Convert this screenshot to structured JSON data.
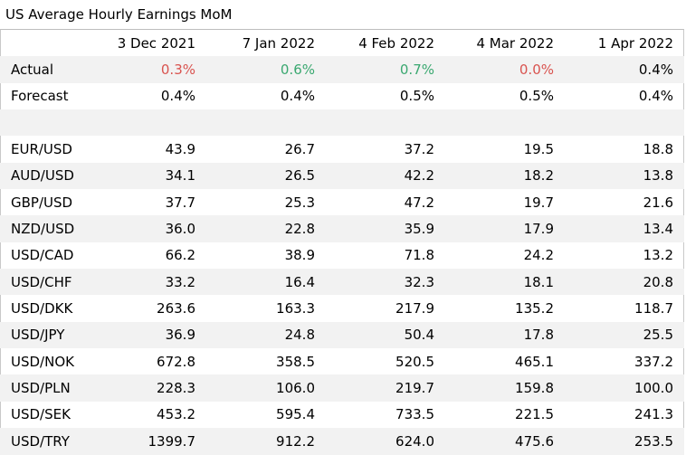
{
  "title": "US Average Hourly Earnings MoM",
  "columns": [
    "3 Dec 2021",
    "7 Jan 2022",
    "4 Feb 2022",
    "4 Mar 2022",
    "1 Apr 2022"
  ],
  "colors": {
    "beat": "#3aa870",
    "miss": "#d9534f",
    "shade": "#f2f2f2"
  },
  "actual": {
    "label": "Actual",
    "values": [
      "0.3%",
      "0.6%",
      "0.7%",
      "0.0%",
      "0.4%"
    ],
    "status": [
      "miss",
      "beat",
      "beat",
      "miss",
      "inline"
    ]
  },
  "forecast": {
    "label": "Forecast",
    "values": [
      "0.4%",
      "0.4%",
      "0.5%",
      "0.5%",
      "0.4%"
    ]
  },
  "rows": [
    {
      "label": "EUR/USD",
      "values": [
        "43.9",
        "26.7",
        "37.2",
        "19.5",
        "18.8"
      ]
    },
    {
      "label": "AUD/USD",
      "values": [
        "34.1",
        "26.5",
        "42.2",
        "18.2",
        "13.8"
      ]
    },
    {
      "label": "GBP/USD",
      "values": [
        "37.7",
        "25.3",
        "47.2",
        "19.7",
        "21.6"
      ]
    },
    {
      "label": "NZD/USD",
      "values": [
        "36.0",
        "22.8",
        "35.9",
        "17.9",
        "13.4"
      ]
    },
    {
      "label": "USD/CAD",
      "values": [
        "66.2",
        "38.9",
        "71.8",
        "24.2",
        "13.2"
      ]
    },
    {
      "label": "USD/CHF",
      "values": [
        "33.2",
        "16.4",
        "32.3",
        "18.1",
        "20.8"
      ]
    },
    {
      "label": "USD/DKK",
      "values": [
        "263.6",
        "163.3",
        "217.9",
        "135.2",
        "118.7"
      ]
    },
    {
      "label": "USD/JPY",
      "values": [
        "36.9",
        "24.8",
        "50.4",
        "17.8",
        "25.5"
      ]
    },
    {
      "label": "USD/NOK",
      "values": [
        "672.8",
        "358.5",
        "520.5",
        "465.1",
        "337.2"
      ]
    },
    {
      "label": "USD/PLN",
      "values": [
        "228.3",
        "106.0",
        "219.7",
        "159.8",
        "100.0"
      ]
    },
    {
      "label": "USD/SEK",
      "values": [
        "453.2",
        "595.4",
        "733.5",
        "221.5",
        "241.3"
      ]
    },
    {
      "label": "USD/TRY",
      "values": [
        "1399.7",
        "912.2",
        "624.0",
        "475.6",
        "253.5"
      ]
    }
  ]
}
